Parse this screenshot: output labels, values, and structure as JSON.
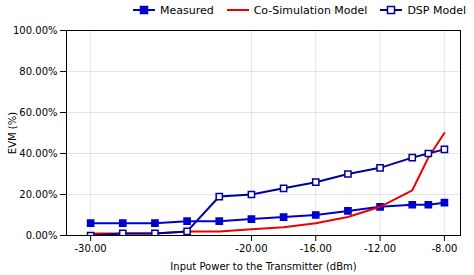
{
  "chart_data": {
    "type": "line",
    "xlabel": "Input Power to the Transmitter (dBm)",
    "ylabel": "EVM (%)",
    "series": [
      {
        "name": "Measured",
        "color": "#0000CC",
        "marker": "square",
        "line_style": "solid",
        "x": [
          -30,
          -28,
          -26,
          -24,
          -22,
          -20,
          -18,
          -16,
          -14,
          -12,
          -10,
          -9,
          -8
        ],
        "values": [
          6,
          6,
          6,
          7,
          7,
          8,
          9,
          10,
          12,
          14,
          15,
          15,
          16
        ]
      },
      {
        "name": "Co-Simulation Model",
        "color": "#EE0000",
        "marker": "none",
        "line_style": "solid",
        "x": [
          -30,
          -28,
          -26,
          -24,
          -22,
          -20,
          -18,
          -16,
          -14,
          -12,
          -10,
          -9.5,
          -9,
          -8.5,
          -8
        ],
        "values": [
          1,
          1,
          1,
          2,
          2,
          3,
          4,
          6,
          9,
          14,
          22,
          30,
          38,
          44,
          50
        ]
      },
      {
        "name": "DSP Model",
        "color": "#000099",
        "marker": "open_square",
        "line_style": "solid",
        "x": [
          -30,
          -28,
          -26,
          -24,
          -22,
          -20,
          -18,
          -16,
          -14,
          -12,
          -10,
          -9,
          -8
        ],
        "values": [
          0,
          1,
          1,
          2,
          19,
          20,
          23,
          26,
          30,
          33,
          38,
          40,
          42
        ]
      }
    ],
    "xlim": [
      -31.5,
      -7
    ],
    "ylim": [
      0,
      100
    ],
    "xticks": [
      {
        "value": -30,
        "label": "-30.00"
      },
      {
        "value": -20,
        "label": "-20.00"
      },
      {
        "value": -16,
        "label": "-16.00"
      },
      {
        "value": -12,
        "label": "-12.00"
      },
      {
        "value": -8,
        "label": "-8.00"
      }
    ],
    "yticks": [
      {
        "value": 0,
        "label": "0.00%"
      },
      {
        "value": 20,
        "label": "20.00%"
      },
      {
        "value": 40,
        "label": "40.00%"
      },
      {
        "value": 60,
        "label": "60.00%"
      },
      {
        "value": 80,
        "label": "80.00%"
      },
      {
        "value": 100,
        "label": "100.00%"
      }
    ],
    "grid": true,
    "legend": "upper right"
  }
}
